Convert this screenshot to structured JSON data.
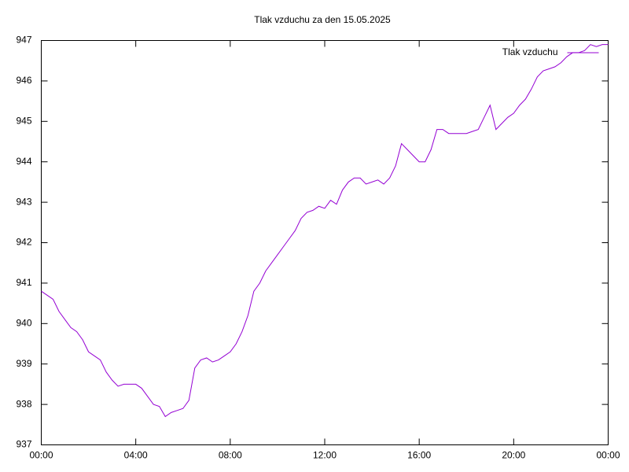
{
  "chart_data": {
    "type": "line",
    "title": "Tlak vzduchu za den 15.05.2025",
    "legend": "top-right",
    "grid": false,
    "x": [
      0,
      0.25,
      0.5,
      0.75,
      1,
      1.25,
      1.5,
      1.75,
      2,
      2.25,
      2.5,
      2.75,
      3,
      3.25,
      3.5,
      3.75,
      4,
      4.25,
      4.5,
      4.75,
      5,
      5.25,
      5.5,
      5.75,
      6,
      6.25,
      6.5,
      6.75,
      7,
      7.25,
      7.5,
      7.75,
      8,
      8.25,
      8.5,
      8.75,
      9,
      9.25,
      9.5,
      9.75,
      10,
      10.25,
      10.5,
      10.75,
      11,
      11.25,
      11.5,
      11.75,
      12,
      12.25,
      12.5,
      12.75,
      13,
      13.25,
      13.5,
      13.75,
      14,
      14.25,
      14.5,
      14.75,
      15,
      15.25,
      15.5,
      15.75,
      16,
      16.25,
      16.5,
      16.75,
      17,
      17.25,
      17.5,
      17.75,
      18,
      18.25,
      18.5,
      18.75,
      19,
      19.25,
      19.5,
      19.75,
      20,
      20.25,
      20.5,
      20.75,
      21,
      21.25,
      21.5,
      21.75,
      22,
      22.25,
      22.5,
      22.75,
      23,
      23.25,
      23.5,
      23.75,
      24
    ],
    "series": [
      {
        "name": "Tlak vzduchu",
        "color": "#9400d3",
        "values": [
          940.8,
          940.7,
          940.6,
          940.3,
          940.1,
          939.9,
          939.8,
          939.6,
          939.3,
          939.2,
          939.1,
          938.8,
          938.6,
          938.45,
          938.5,
          938.5,
          938.5,
          938.4,
          938.2,
          938.0,
          937.95,
          937.7,
          937.8,
          937.85,
          937.9,
          938.1,
          938.9,
          939.1,
          939.15,
          939.05,
          939.1,
          939.2,
          939.3,
          939.5,
          939.8,
          940.2,
          940.8,
          941.0,
          941.3,
          941.5,
          941.7,
          941.9,
          942.1,
          942.3,
          942.6,
          942.75,
          942.8,
          942.9,
          942.85,
          943.05,
          942.95,
          943.3,
          943.5,
          943.6,
          943.6,
          943.45,
          943.5,
          943.55,
          943.45,
          943.6,
          943.9,
          944.45,
          944.3,
          944.15,
          944.0,
          944.0,
          944.3,
          944.8,
          944.8,
          944.7,
          944.7,
          944.7,
          944.7,
          944.75,
          944.8,
          945.1,
          945.4,
          944.8,
          944.95,
          945.1,
          945.2,
          945.4,
          945.55,
          945.8,
          946.1,
          946.25,
          946.3,
          946.35,
          946.45,
          946.6,
          946.7,
          946.7,
          946.75,
          946.9,
          946.85,
          946.9,
          946.9
        ]
      }
    ],
    "xlim": [
      0,
      24
    ],
    "xticks": [
      {
        "value": 0,
        "label": "00:00"
      },
      {
        "value": 4,
        "label": "04:00"
      },
      {
        "value": 8,
        "label": "08:00"
      },
      {
        "value": 12,
        "label": "12:00"
      },
      {
        "value": 16,
        "label": "16:00"
      },
      {
        "value": 20,
        "label": "20:00"
      },
      {
        "value": 24,
        "label": "00:00"
      }
    ],
    "ylim": [
      937,
      947
    ],
    "yticks": [
      937,
      938,
      939,
      940,
      941,
      942,
      943,
      944,
      945,
      946,
      947
    ]
  }
}
